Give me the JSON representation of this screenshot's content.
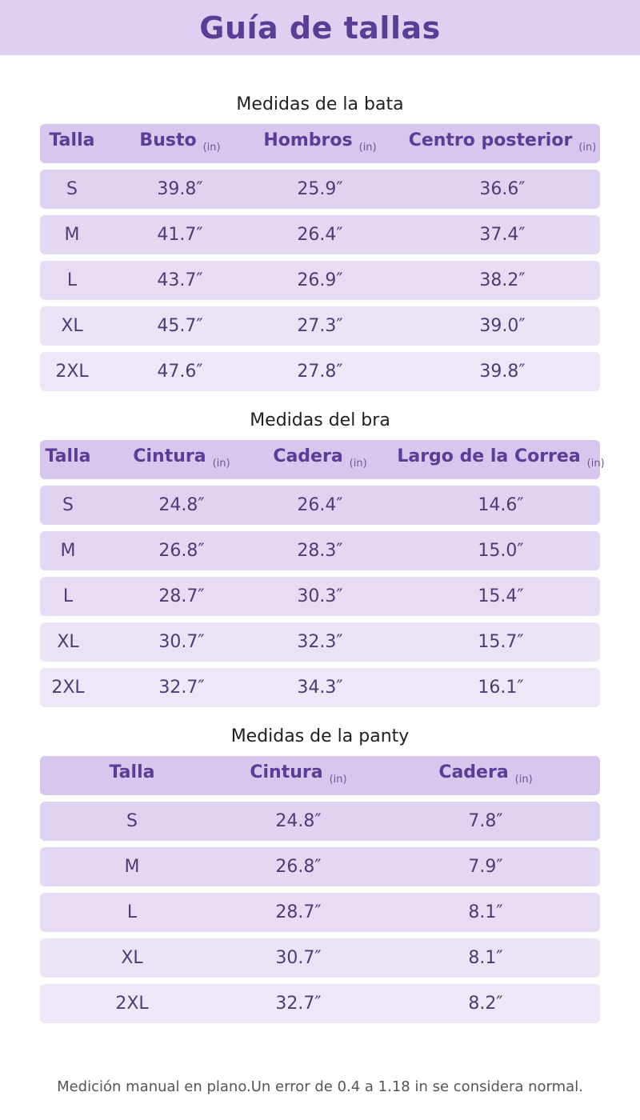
{
  "header": {
    "title": "Guía de tallas"
  },
  "tables": [
    {
      "title": "Medidas de la bata",
      "columns": [
        {
          "label": "Talla",
          "unit": ""
        },
        {
          "label": "Busto",
          "unit": "(in)"
        },
        {
          "label": "Hombros",
          "unit": "(in)"
        },
        {
          "label": "Centro posterior",
          "unit": "(in)"
        }
      ],
      "rows": [
        [
          "S",
          "39.8″",
          "25.9″",
          "36.6″"
        ],
        [
          "M",
          "41.7″",
          "26.4″",
          "37.4″"
        ],
        [
          "L",
          "43.7″",
          "26.9″",
          "38.2″"
        ],
        [
          "XL",
          "45.7″",
          "27.3″",
          "39.0″"
        ],
        [
          "2XL",
          "47.6″",
          "27.8″",
          "39.8″"
        ]
      ]
    },
    {
      "title": "Medidas del bra",
      "columns": [
        {
          "label": "Talla",
          "unit": ""
        },
        {
          "label": "Cintura",
          "unit": "(in)"
        },
        {
          "label": "Cadera",
          "unit": "(in)"
        },
        {
          "label": "Largo de la Correa",
          "unit": "(in)"
        }
      ],
      "rows": [
        [
          "S",
          "24.8″",
          "26.4″",
          "14.6″"
        ],
        [
          "M",
          "26.8″",
          "28.3″",
          "15.0″"
        ],
        [
          "L",
          "28.7″",
          "30.3″",
          "15.4″"
        ],
        [
          "XL",
          "30.7″",
          "32.3″",
          "15.7″"
        ],
        [
          "2XL",
          "32.7″",
          "34.3″",
          "16.1″"
        ]
      ]
    },
    {
      "title": "Medidas de la panty",
      "columns": [
        {
          "label": "Talla",
          "unit": ""
        },
        {
          "label": "Cintura",
          "unit": "(in)"
        },
        {
          "label": "Cadera",
          "unit": "(in)"
        }
      ],
      "rows": [
        [
          "S",
          "24.8″",
          "7.8″"
        ],
        [
          "M",
          "26.8″",
          "7.9″"
        ],
        [
          "L",
          "28.7″",
          "8.1″"
        ],
        [
          "XL",
          "30.7″",
          "8.1″"
        ],
        [
          "2XL",
          "32.7″",
          "8.2″"
        ]
      ]
    }
  ],
  "footer_note": "Medición manual en plano.Un error de 0.4 a 1.18 in se considera normal.",
  "colors": {
    "header_bg": "#ddd0f0",
    "title_color": "#5a3e96",
    "header_row_bg": "#d7c7ef"
  }
}
